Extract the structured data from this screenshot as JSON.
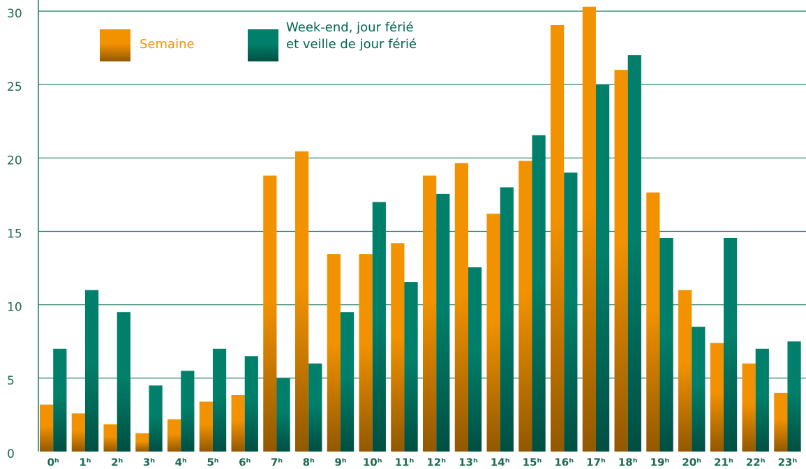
{
  "chart_data": {
    "type": "bar",
    "categories": [
      "0ʰ",
      "1ʰ",
      "2ʰ",
      "3ʰ",
      "4ʰ",
      "5ʰ",
      "6ʰ",
      "7ʰ",
      "8ʰ",
      "9ʰ",
      "10ʰ",
      "11ʰ",
      "12ʰ",
      "13ʰ",
      "14ʰ",
      "15ʰ",
      "16ʰ",
      "17ʰ",
      "18ʰ",
      "19ʰ",
      "20ʰ",
      "21ʰ",
      "22ʰ",
      "23ʰ"
    ],
    "series": [
      {
        "name": "Semaine",
        "color": "#f39200",
        "values": [
          3.2,
          2.6,
          1.85,
          1.25,
          2.2,
          3.4,
          3.85,
          18.8,
          20.45,
          13.45,
          13.45,
          14.2,
          18.8,
          19.65,
          16.2,
          19.8,
          29.05,
          30.3,
          26,
          17.65,
          11,
          7.4,
          6,
          4
        ]
      },
      {
        "name": "Week-end, jour férié\net veille de jour férié",
        "color": "#00806a",
        "values": [
          7,
          11,
          9.5,
          4.5,
          5.5,
          7,
          6.5,
          5,
          6,
          9.5,
          17,
          11.55,
          17.55,
          12.55,
          18,
          21.55,
          19,
          25,
          27,
          14.55,
          8.5,
          14.55,
          7,
          7.5
        ]
      }
    ],
    "ylim": [
      0,
      30
    ],
    "yticks": [
      0,
      5,
      10,
      15,
      20,
      25,
      30
    ],
    "grid": true,
    "legend": "top-left"
  }
}
